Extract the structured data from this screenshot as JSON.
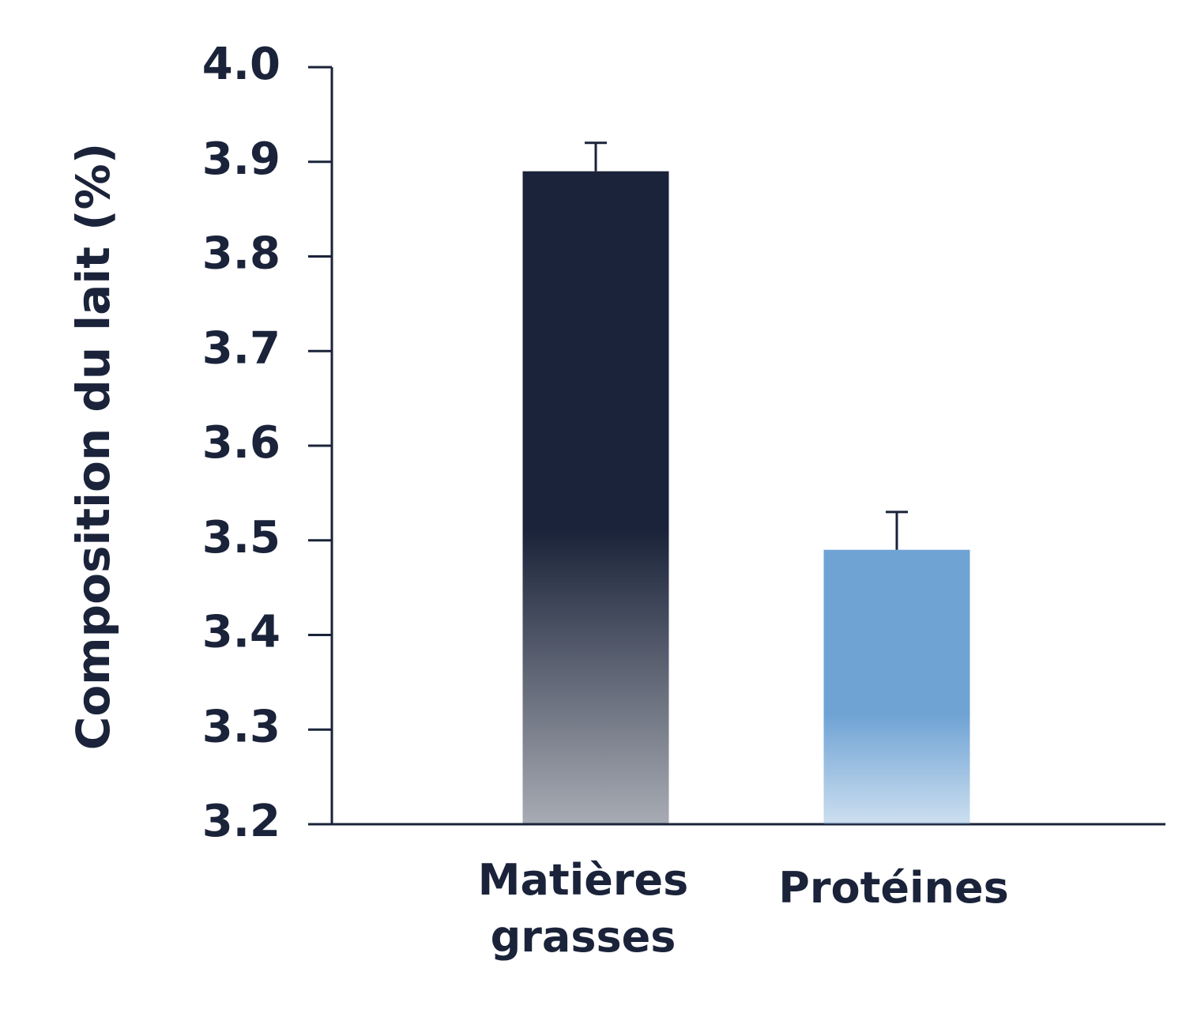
{
  "chart_data": {
    "type": "bar",
    "y_label": "Composition du lait (%)",
    "categories": [
      "Matières grasses",
      "Protéines"
    ],
    "values": [
      3.89,
      3.49
    ],
    "errors": [
      0.03,
      0.04
    ],
    "colors": [
      "#1a2339",
      "#6fa3d4"
    ],
    "ylim": [
      3.2,
      4.0
    ],
    "yticks": [
      3.2,
      3.3,
      3.4,
      3.5,
      3.6,
      3.7,
      3.8,
      3.9,
      {
        "value": 4.0,
        "label": "4.0"
      }
    ]
  }
}
